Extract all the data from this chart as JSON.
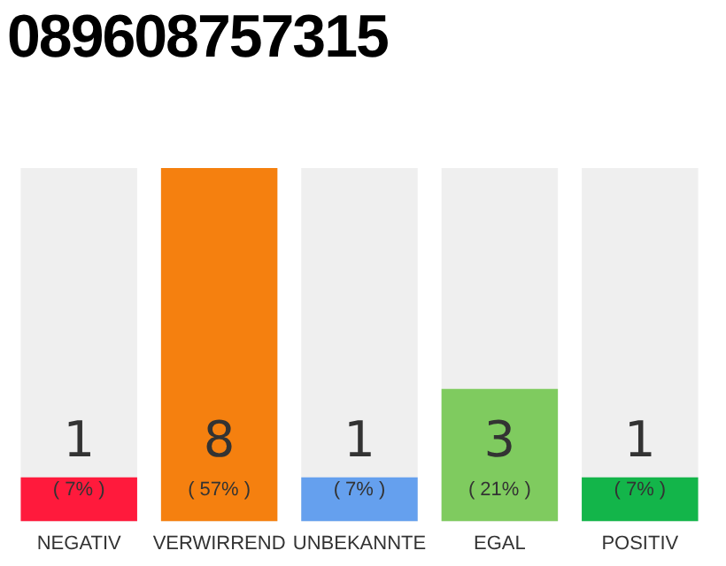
{
  "chart_data": {
    "type": "bar",
    "title": "089608757315",
    "categories": [
      "NEGATIV",
      "VERWIRREND",
      "UNBEKANNTE",
      "EGAL",
      "POSITIV"
    ],
    "values": [
      1,
      8,
      1,
      3,
      1
    ],
    "colors": [
      "#ff1a3c",
      "#f5800f",
      "#65a0ee",
      "#7fcb5f",
      "#13b54a"
    ],
    "annotations": [
      "( 7% )",
      "( 57% )",
      "( 7% )",
      "( 21% )",
      "( 7% )"
    ],
    "data_labels": true,
    "grid": false,
    "legend": false
  }
}
